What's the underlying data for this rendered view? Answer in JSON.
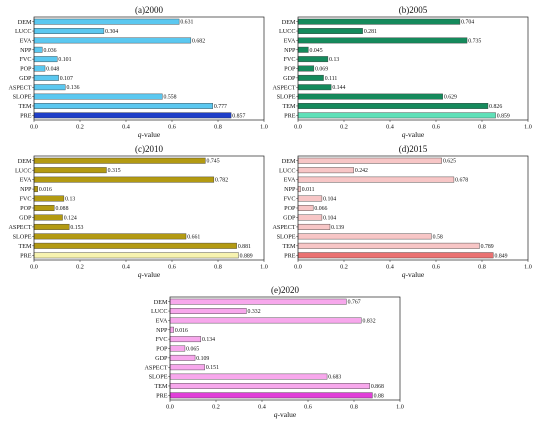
{
  "chart_data": [
    {
      "type": "bar",
      "title": "(a)2000",
      "xlabel": "q-value",
      "xlim": [
        0,
        1.0
      ],
      "xticks": [
        "0.0",
        "0.2",
        "0.4",
        "0.6",
        "0.8",
        "1.0"
      ],
      "categories": [
        "DEM",
        "LUCC",
        "EVA",
        "NPP",
        "FVC",
        "POP",
        "GDP",
        "ASPECT",
        "SLOPE",
        "TEM",
        "PRE"
      ],
      "values": [
        0.631,
        0.304,
        0.682,
        0.036,
        0.101,
        0.048,
        0.107,
        0.136,
        0.558,
        0.777,
        0.857
      ],
      "labels": [
        "0.631",
        "0.304",
        "0.682",
        "0.036",
        "0.101",
        "0.048",
        "0.107",
        "0.136",
        "0.558",
        "0.777",
        "0.857"
      ],
      "color": "#5bc8f0",
      "highlight_color": "#1f3fc8"
    },
    {
      "type": "bar",
      "title": "(b)2005",
      "xlabel": "q-value",
      "xlim": [
        0,
        1.0
      ],
      "xticks": [
        "0.0",
        "0.2",
        "0.4",
        "0.6",
        "0.8",
        "1.0"
      ],
      "categories": [
        "DEM",
        "LUCC",
        "EVA",
        "NPP",
        "FVC",
        "POP",
        "GDP",
        "ASPECT",
        "SLOPE",
        "TEM",
        "PRE"
      ],
      "values": [
        0.704,
        0.281,
        0.735,
        0.045,
        0.13,
        0.069,
        0.111,
        0.144,
        0.629,
        0.826,
        0.859
      ],
      "labels": [
        "0.704",
        "0.281",
        "0.735",
        "0.045",
        "0.13",
        "0.069",
        "0.111",
        "0.144",
        "0.629",
        "0.826",
        "0.859"
      ],
      "color": "#158a5c",
      "highlight_color": "#5fe0b8"
    },
    {
      "type": "bar",
      "title": "(c)2010",
      "xlabel": "q-value",
      "xlim": [
        0,
        1.0
      ],
      "xticks": [
        "0.0",
        "0.2",
        "0.4",
        "0.6",
        "0.8",
        "1.0"
      ],
      "categories": [
        "DEM",
        "LUCC",
        "EVA",
        "NPP",
        "FVC",
        "POP",
        "GDP",
        "ASPECT",
        "SLOPE",
        "TEM",
        "PRE"
      ],
      "values": [
        0.745,
        0.315,
        0.782,
        0.016,
        0.13,
        0.088,
        0.124,
        0.153,
        0.661,
        0.881,
        0.889
      ],
      "labels": [
        "0.745",
        "0.315",
        "0.782",
        "0.016",
        "0.13",
        "0.088",
        "0.124",
        "0.153",
        "0.661",
        "0.881",
        "0.889"
      ],
      "color": "#b39a12",
      "highlight_color": "#f7f3b0"
    },
    {
      "type": "bar",
      "title": "(d)2015",
      "xlabel": "q-value",
      "xlim": [
        0,
        1.0
      ],
      "xticks": [
        "0.0",
        "0.2",
        "0.4",
        "0.6",
        "0.8",
        "1.0"
      ],
      "categories": [
        "DEM",
        "LUCC",
        "EVA",
        "NPP",
        "FVC",
        "POP",
        "GDP",
        "ASPECT",
        "SLOPE",
        "TEM",
        "PRE"
      ],
      "values": [
        0.625,
        0.242,
        0.678,
        0.011,
        0.104,
        0.066,
        0.104,
        0.139,
        0.58,
        0.789,
        0.849
      ],
      "labels": [
        "0.625",
        "0.242",
        "0.678",
        "0.011",
        "0.104",
        "0.066",
        "0.104",
        "0.139",
        "0.58",
        "0.789",
        "0.849"
      ],
      "color": "#f7c6c6",
      "highlight_color": "#ea7272"
    },
    {
      "type": "bar",
      "title": "(e)2020",
      "xlabel": "q-value",
      "xlim": [
        0,
        1.0
      ],
      "xticks": [
        "0.0",
        "0.2",
        "0.4",
        "0.6",
        "0.8",
        "1.0"
      ],
      "categories": [
        "DEM",
        "LUCC",
        "EVA",
        "NPP",
        "FVC",
        "POP",
        "GDP",
        "ASPECT",
        "SLOPE",
        "TEM",
        "PRE"
      ],
      "values": [
        0.767,
        0.332,
        0.832,
        0.016,
        0.134,
        0.065,
        0.109,
        0.151,
        0.683,
        0.868,
        0.88
      ],
      "labels": [
        "0.767",
        "0.332",
        "0.832",
        "0.016",
        "0.134",
        "0.065",
        "0.109",
        "0.151",
        "0.683",
        "0.868",
        "0.88"
      ],
      "color": "#f7a8ec",
      "highlight_color": "#e040d8"
    }
  ]
}
